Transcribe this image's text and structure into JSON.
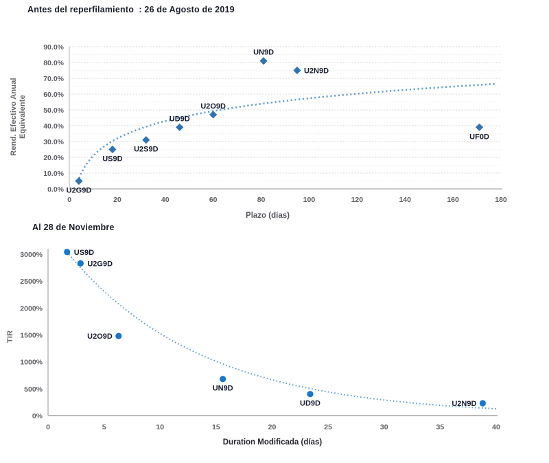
{
  "chart_data": [
    {
      "type": "scatter",
      "title": "Antes del reperfilamiento  : 26 de Agosto de 2019",
      "xlabel": "Plazo (días)",
      "ylabel_lines": [
        "Rend. Efectivo Anual",
        "Equivalente"
      ],
      "xlim": [
        0,
        180
      ],
      "ylim": [
        0,
        90
      ],
      "y_unit": "percent",
      "grid": true,
      "legend": "none",
      "marker": "diamond",
      "marker_color": "#2E74B5",
      "xticks": [
        {
          "v": 0,
          "label": "0"
        },
        {
          "v": 20,
          "label": "20"
        },
        {
          "v": 40,
          "label": "40"
        },
        {
          "v": 60,
          "label": "60"
        },
        {
          "v": 80,
          "label": "80"
        },
        {
          "v": 100,
          "label": "100"
        },
        {
          "v": 120,
          "label": "120"
        },
        {
          "v": 140,
          "label": "140"
        },
        {
          "v": 160,
          "label": "160"
        },
        {
          "v": 180,
          "label": "180"
        }
      ],
      "yticks": [
        {
          "v": 0,
          "label": "0.0%"
        },
        {
          "v": 10,
          "label": "10.0%"
        },
        {
          "v": 20,
          "label": "20.0%"
        },
        {
          "v": 30,
          "label": "30.0%"
        },
        {
          "v": 40,
          "label": "40.0%"
        },
        {
          "v": 50,
          "label": "50.0%"
        },
        {
          "v": 60,
          "label": "60.0%"
        },
        {
          "v": 70,
          "label": "70.0%"
        },
        {
          "v": 80,
          "label": "80.0%"
        },
        {
          "v": 90,
          "label": "90.0%"
        }
      ],
      "points": [
        {
          "label": "U2G9D",
          "x": 4,
          "y": 5,
          "label_pos": "below"
        },
        {
          "label": "US9D",
          "x": 18,
          "y": 25,
          "label_pos": "below"
        },
        {
          "label": "U2S9D",
          "x": 32,
          "y": 31,
          "label_pos": "below"
        },
        {
          "label": "UD9D",
          "x": 46,
          "y": 39,
          "label_pos": "above"
        },
        {
          "label": "U2O9D",
          "x": 60,
          "y": 47,
          "label_pos": "above"
        },
        {
          "label": "UN9D",
          "x": 81,
          "y": 81,
          "label_pos": "above"
        },
        {
          "label": "U2N9D",
          "x": 95,
          "y": 75,
          "label_pos": "right"
        },
        {
          "label": "UF0D",
          "x": 171,
          "y": 39,
          "label_pos": "below"
        }
      ],
      "trend": {
        "type": "log",
        "formula": "y = 15.8*ln(x) - 15.4",
        "A": 15.8,
        "B": -15.4,
        "x_start": 3.5,
        "x_end": 178,
        "color": "#5B9BD5",
        "style": "dotted"
      }
    },
    {
      "type": "scatter",
      "title": "Al 28 de Noviembre",
      "xlabel": "Duration Modificada (días)",
      "ylabel": "TIR",
      "xlim": [
        0,
        40
      ],
      "ylim": [
        0,
        3000
      ],
      "y_unit": "percent",
      "grid": false,
      "legend": "none",
      "marker": "circle",
      "marker_color": "#1478CC",
      "xticks": [
        {
          "v": 0,
          "label": "0"
        },
        {
          "v": 5,
          "label": "5"
        },
        {
          "v": 10,
          "label": "10"
        },
        {
          "v": 15,
          "label": "15"
        },
        {
          "v": 20,
          "label": "20"
        },
        {
          "v": 25,
          "label": "25"
        },
        {
          "v": 30,
          "label": "30"
        },
        {
          "v": 35,
          "label": "35"
        },
        {
          "v": 40,
          "label": "40"
        }
      ],
      "yticks": [
        {
          "v": 0,
          "label": "0%"
        },
        {
          "v": 500,
          "label": "500%"
        },
        {
          "v": 1000,
          "label": "1000%"
        },
        {
          "v": 1500,
          "label": "1500%"
        },
        {
          "v": 2000,
          "label": "2000%"
        },
        {
          "v": 2500,
          "label": "2500%"
        },
        {
          "v": 3000,
          "label": "3000%"
        }
      ],
      "points": [
        {
          "label": "US9D",
          "x": 1.7,
          "y": 3040,
          "label_pos": "right"
        },
        {
          "label": "U2G9D",
          "x": 2.9,
          "y": 2830,
          "label_pos": "right"
        },
        {
          "label": "U2O9D",
          "x": 6.3,
          "y": 1480,
          "label_pos": "left"
        },
        {
          "label": "UN9D",
          "x": 15.6,
          "y": 680,
          "label_pos": "below"
        },
        {
          "label": "UD9D",
          "x": 23.4,
          "y": 400,
          "label_pos": "below"
        },
        {
          "label": "U2N9D",
          "x": 38.8,
          "y": 230,
          "label_pos": "left"
        }
      ],
      "trend": {
        "type": "exp",
        "formula": "y = 3500*e^(-0.083x)",
        "A": 3500,
        "k": -0.083,
        "x_start": 1.5,
        "x_end": 40,
        "color": "#4F97DC",
        "style": "dotted"
      }
    }
  ],
  "colors": {
    "chart1_marker": "#2E74B5",
    "chart2_marker": "#1478CC",
    "trend_blue": "#5B9BD5",
    "tick_text": "#5d5d63",
    "point_label_text": "#171c2e",
    "gridline": "#d7d3d3",
    "axis_line": "#b9b9b9"
  }
}
